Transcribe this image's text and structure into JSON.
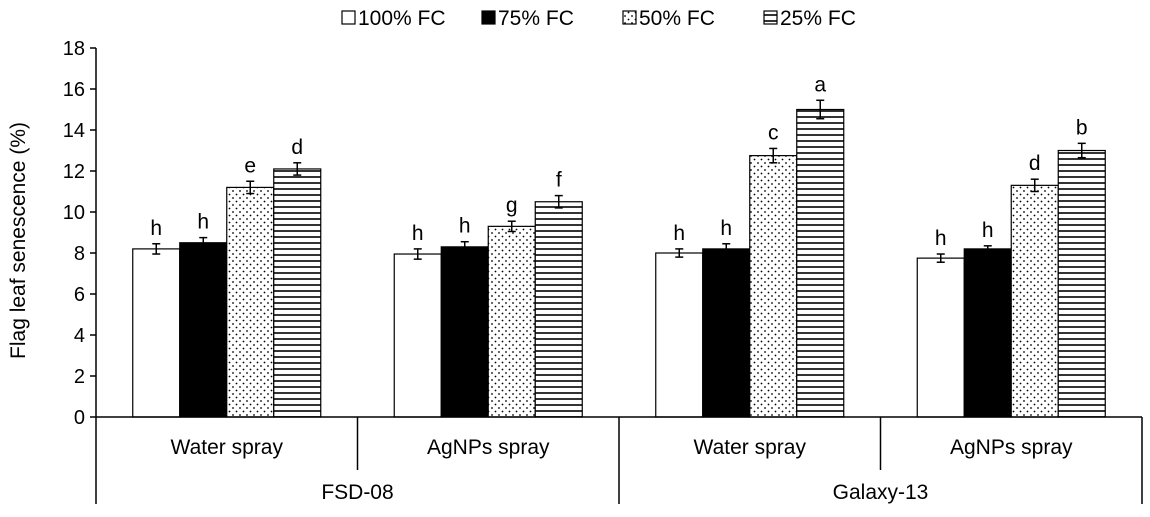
{
  "chart_data": {
    "type": "bar",
    "title": "",
    "xlabel": "",
    "ylabel": "Flag leaf senescence (%)",
    "ylim": [
      0,
      18
    ],
    "yticks": [
      0,
      2,
      4,
      6,
      8,
      10,
      12,
      14,
      16,
      18
    ],
    "ytick_labels": [
      "0",
      "2",
      "4",
      "6",
      "8",
      "10",
      "12",
      "14",
      "16",
      "18"
    ],
    "grid": false,
    "legend_position": "top",
    "categories": [
      "Water spray",
      "AgNPs spray",
      "Water spray",
      "AgNPs spray"
    ],
    "groups": [
      {
        "label": "FSD-08",
        "span": [
          0,
          1
        ]
      },
      {
        "label": "Galaxy-13",
        "span": [
          2,
          3
        ]
      }
    ],
    "series": [
      {
        "name": "100% FC",
        "pattern": "white",
        "values": [
          8.2,
          7.95,
          8.0,
          7.75
        ],
        "errors": [
          0.25,
          0.25,
          0.2,
          0.2
        ],
        "labels": [
          "h",
          "h",
          "h",
          "h"
        ]
      },
      {
        "name": "75% FC",
        "pattern": "black",
        "values": [
          8.5,
          8.3,
          8.2,
          8.2
        ],
        "errors": [
          0.25,
          0.25,
          0.25,
          0.15
        ],
        "labels": [
          "h",
          "h",
          "h",
          "h"
        ]
      },
      {
        "name": "50% FC",
        "pattern": "dotted",
        "values": [
          11.2,
          9.3,
          12.75,
          11.3
        ],
        "errors": [
          0.3,
          0.25,
          0.35,
          0.3
        ],
        "labels": [
          "e",
          "g",
          "c",
          "d"
        ]
      },
      {
        "name": "25% FC",
        "pattern": "horizontal-lines",
        "values": [
          12.1,
          10.5,
          15.0,
          13.0
        ],
        "errors": [
          0.3,
          0.3,
          0.45,
          0.35
        ],
        "labels": [
          "d",
          "f",
          "a",
          "b"
        ]
      }
    ]
  }
}
